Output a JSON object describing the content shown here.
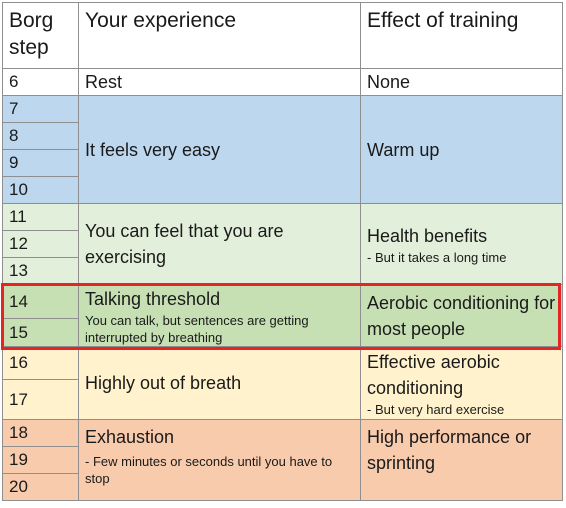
{
  "headers": {
    "step": "Borg step",
    "experience": "Your experience",
    "effect": "Effect of training"
  },
  "colors": {
    "rest": "#ffffff",
    "easy": "#bdd7ee",
    "exercising": "#e2efda",
    "threshold": "#c6e0b4",
    "breath": "#fff2cc",
    "exhaustion": "#f8cbad",
    "highlight_border": "#e52525"
  },
  "groups": [
    {
      "id": "rest",
      "steps": [
        "6"
      ],
      "experience": "Rest",
      "experience_note": "",
      "effect": "None",
      "effect_note": ""
    },
    {
      "id": "easy",
      "steps": [
        "7",
        "8",
        "9",
        "10"
      ],
      "experience": "It feels very easy",
      "experience_note": "",
      "effect": "Warm up",
      "effect_note": ""
    },
    {
      "id": "exercising",
      "steps": [
        "11",
        "12",
        "13"
      ],
      "experience": "You can feel that you are exercising",
      "experience_note": "",
      "effect": "Health benefits",
      "effect_note": "- But it takes a long time"
    },
    {
      "id": "threshold",
      "steps": [
        "14",
        "15"
      ],
      "experience": "Talking threshold",
      "experience_note": "You can talk, but sentences are getting interrupted by breathing",
      "effect": "Aerobic conditioning for most people",
      "effect_note": ""
    },
    {
      "id": "breath",
      "steps": [
        "16",
        "17"
      ],
      "experience": "Highly out of breath",
      "experience_note": "",
      "effect": "Effective aerobic conditioning",
      "effect_note": "- But very hard exercise"
    },
    {
      "id": "exhaustion",
      "steps": [
        "18",
        "19",
        "20"
      ],
      "experience": "Exhaustion",
      "experience_note": "- Few minutes or seconds until you have to stop",
      "effect": "High performance or sprinting",
      "effect_note": ""
    }
  ]
}
